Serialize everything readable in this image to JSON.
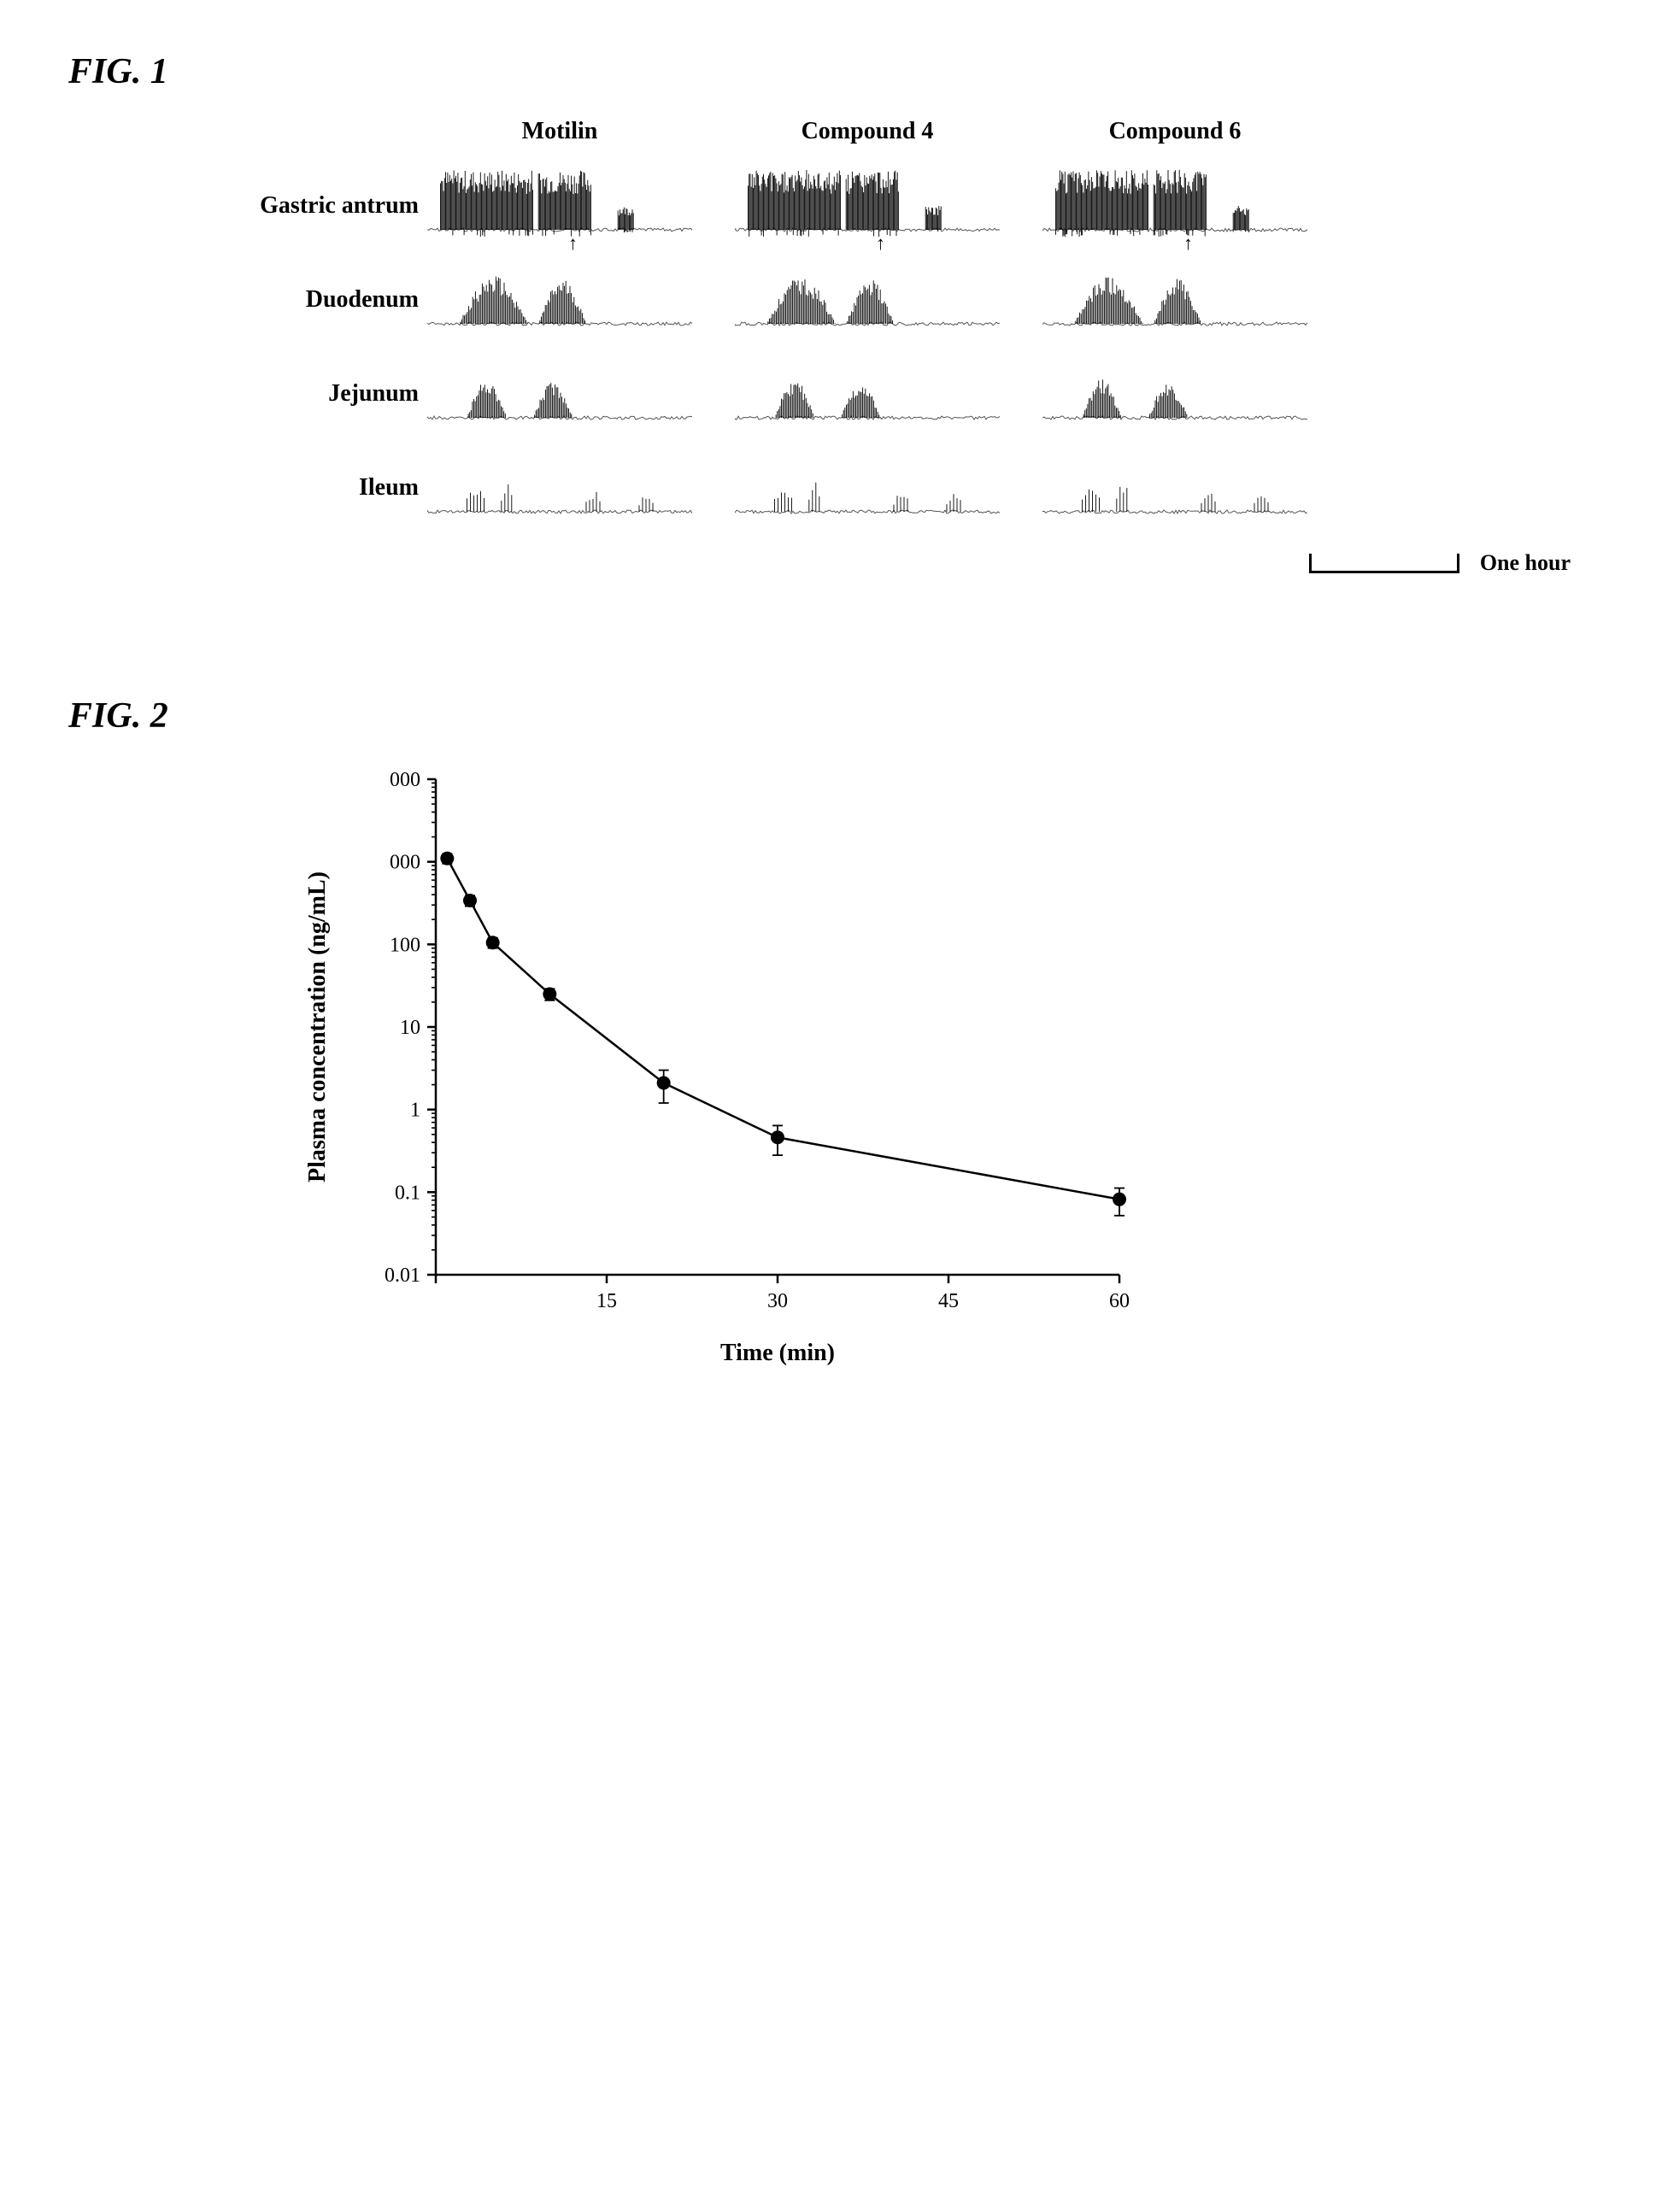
{
  "fig1": {
    "title": "FIG. 1",
    "row_labels": [
      "Gastric antrum",
      "Duodenum",
      "Jejunum",
      "Ileum"
    ],
    "column_headers": [
      "Motilin",
      "Compound 4",
      "Compound 6"
    ],
    "scalebar_label": "One hour",
    "trace_color": "#000000",
    "baseline_color": "#555555",
    "arrow_row_index": 0,
    "font_family": "Times New Roman",
    "header_fontsize": 28,
    "rowlabel_fontsize": 28,
    "title_fontsize": 42
  },
  "fig2": {
    "title": "FIG. 2",
    "chart": {
      "type": "line",
      "x_label": "Time (min)",
      "y_label": "Plasma concentration (ng/mL)",
      "x_scale": "linear",
      "y_scale": "log",
      "xlim": [
        0,
        60
      ],
      "ylim": [
        0.01,
        10000
      ],
      "x_ticks": [
        0,
        15,
        30,
        45,
        60
      ],
      "x_tick_labels": [
        "",
        "15",
        "30",
        "45",
        "60"
      ],
      "y_ticks": [
        0.01,
        0.1,
        1,
        10,
        100,
        1000,
        10000
      ],
      "y_tick_labels": [
        "0.01",
        "0.1",
        "1",
        "10",
        "100",
        "000",
        "000"
      ],
      "points": [
        {
          "x": 1,
          "y": 1100,
          "err": 150
        },
        {
          "x": 3,
          "y": 340,
          "err": 50
        },
        {
          "x": 5,
          "y": 105,
          "err": 15
        },
        {
          "x": 10,
          "y": 25,
          "err": 4
        },
        {
          "x": 20,
          "y": 2.1,
          "err": 0.9
        },
        {
          "x": 30,
          "y": 0.46,
          "err": 0.18
        },
        {
          "x": 60,
          "y": 0.082,
          "err": 0.03
        }
      ],
      "marker_color": "#000000",
      "marker_radius": 8,
      "line_color": "#000000",
      "line_width": 2.5,
      "axis_color": "#000000",
      "axis_width": 2.5,
      "tick_len_major": 10,
      "tick_len_minor": 5,
      "background_color": "#ffffff",
      "label_fontsize": 28,
      "tick_fontsize": 24,
      "font_family": "Times New Roman",
      "font_weight": "bold"
    }
  }
}
